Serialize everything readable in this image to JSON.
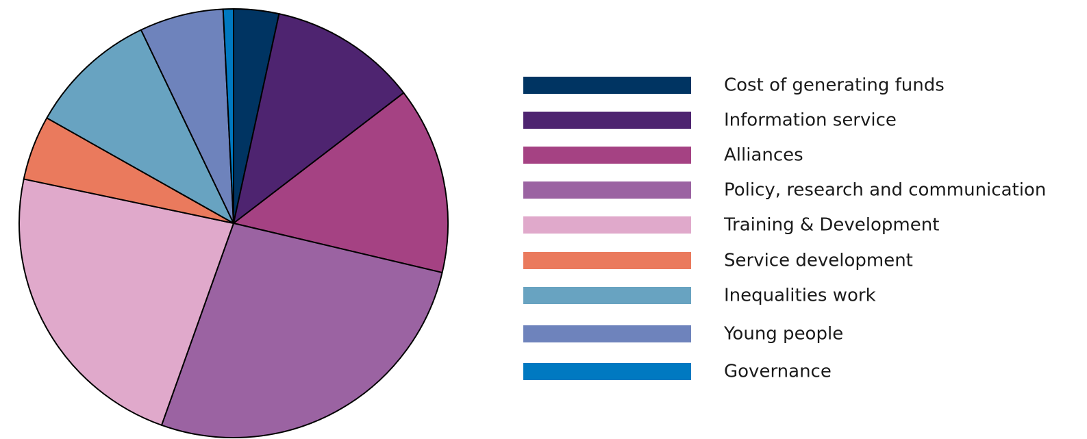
{
  "chart_data": {
    "type": "pie",
    "title": "",
    "legend_position": "right",
    "slices": [
      {
        "label": "Cost of generating funds",
        "value": 3.5,
        "color": "#003462"
      },
      {
        "label": "Information service",
        "value": 11.5,
        "color": "#4e2470"
      },
      {
        "label": "Alliances",
        "value": 14.5,
        "color": "#a54283"
      },
      {
        "label": "Policy, research and communication",
        "value": 27.5,
        "color": "#9b63a2"
      },
      {
        "label": "Training & Development",
        "value": 23.5,
        "color": "#e0a9cb"
      },
      {
        "label": "Service development",
        "value": 5.0,
        "color": "#ea7a5d"
      },
      {
        "label": "Inequalities work",
        "value": 10.0,
        "color": "#68a3c1"
      },
      {
        "label": "Young people",
        "value": 6.5,
        "color": "#6e83bc"
      },
      {
        "label": "Governance",
        "value": 0.8,
        "color": "#0079c1"
      }
    ]
  }
}
